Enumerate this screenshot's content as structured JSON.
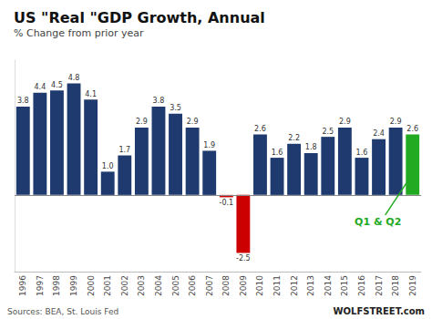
{
  "chart_data": {
    "type": "bar",
    "title": "US \"Real \"GDP Growth, Annual",
    "subtitle": "% Change from prior year",
    "categories": [
      "1996",
      "1997",
      "1998",
      "1999",
      "2000",
      "2001",
      "2002",
      "2003",
      "2004",
      "2005",
      "2006",
      "2007",
      "2008",
      "2009",
      "2010",
      "2011",
      "2012",
      "2013",
      "2014",
      "2015",
      "2016",
      "2017",
      "2018",
      "2019"
    ],
    "values": [
      3.8,
      4.4,
      4.5,
      4.8,
      4.1,
      1.0,
      1.7,
      2.9,
      3.8,
      3.5,
      2.9,
      1.9,
      -0.1,
      -2.5,
      2.6,
      1.6,
      2.2,
      1.8,
      2.5,
      2.9,
      1.6,
      2.4,
      2.9,
      2.6
    ],
    "value_labels": [
      "3.8",
      "4.4",
      "4.5",
      "4.8",
      "4.1",
      "1.0",
      "1.7",
      "2.9",
      "3.8",
      "3.5",
      "2.9",
      "1.9",
      "-0.1",
      "-2.5",
      "2.6",
      "1.6",
      "2.2",
      "1.8",
      "2.5",
      "2.9",
      "1.6",
      "2.4",
      "2.9",
      "2.6"
    ],
    "colors": [
      "#1e3a6e",
      "#1e3a6e",
      "#1e3a6e",
      "#1e3a6e",
      "#1e3a6e",
      "#1e3a6e",
      "#1e3a6e",
      "#1e3a6e",
      "#1e3a6e",
      "#1e3a6e",
      "#1e3a6e",
      "#1e3a6e",
      "#cc0000",
      "#cc0000",
      "#1e3a6e",
      "#1e3a6e",
      "#1e3a6e",
      "#1e3a6e",
      "#1e3a6e",
      "#1e3a6e",
      "#1e3a6e",
      "#1e3a6e",
      "#1e3a6e",
      "#22aa22"
    ],
    "ylim": [
      -3.3,
      5.8
    ],
    "data_labels": true,
    "tick_labels": "x",
    "grid": false,
    "annotations": [
      {
        "text": "Q1 & Q2",
        "color": "#22aa22"
      }
    ],
    "source": "Sources: BEA, St. Louis Fed",
    "watermark": "WOLFSTREET.com"
  }
}
